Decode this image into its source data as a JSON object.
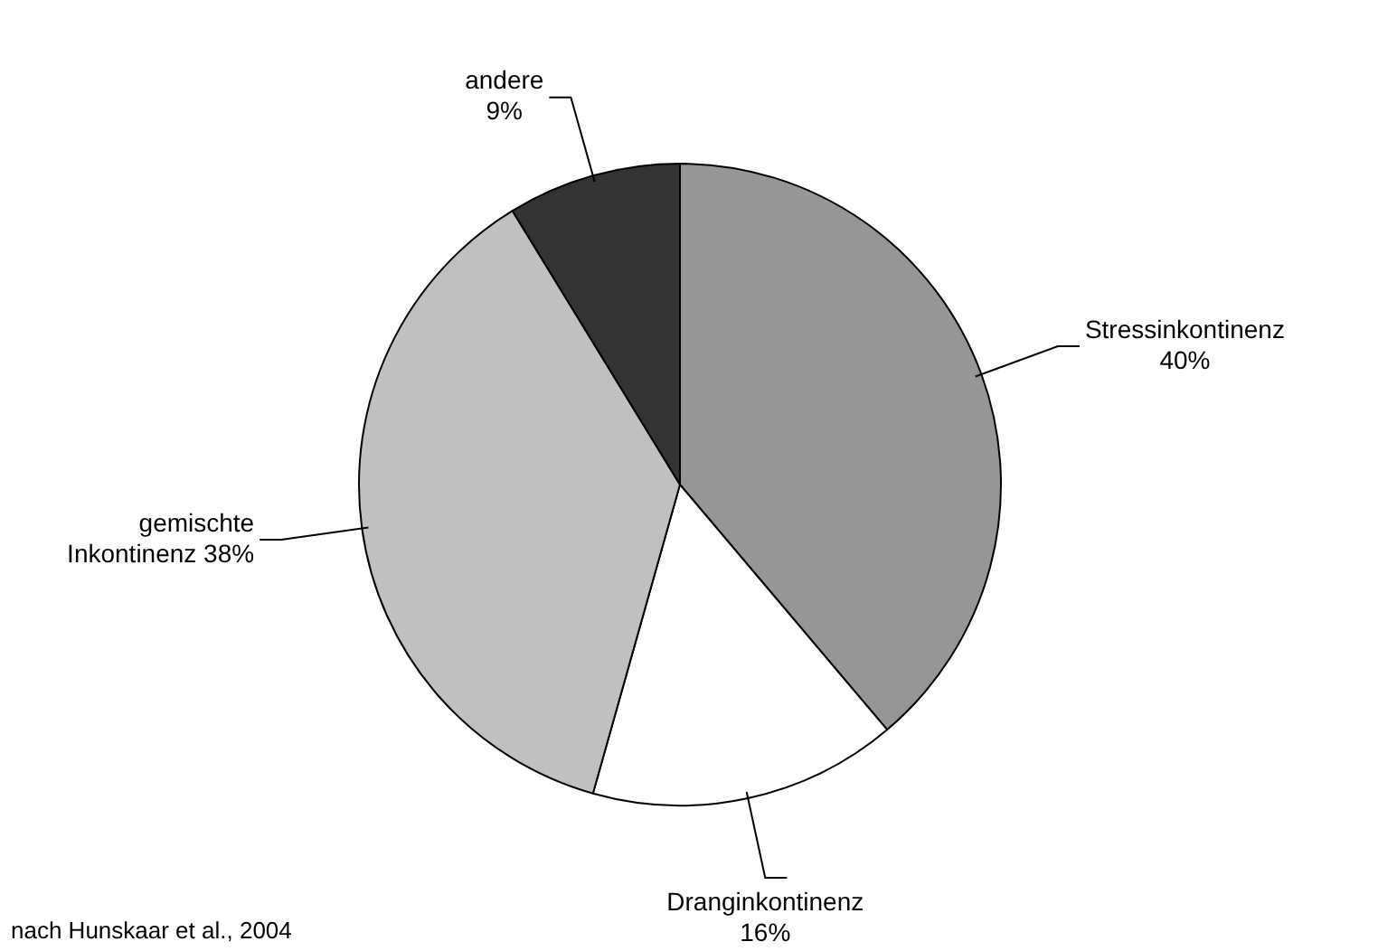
{
  "chart_data": {
    "type": "pie",
    "categories": [
      "Stressinkontinenz",
      "Dranginkontinenz",
      "gemischte Inkontinenz",
      "andere"
    ],
    "values": [
      40,
      16,
      38,
      9
    ],
    "value_labels": [
      "40%",
      "16%",
      "38%",
      "9%"
    ],
    "colors": [
      "#969696",
      "#ffffff",
      "#c0c0c0",
      "#333333"
    ],
    "legend": false,
    "annotations": [
      "nach Hunskaar et al., 2004"
    ]
  }
}
